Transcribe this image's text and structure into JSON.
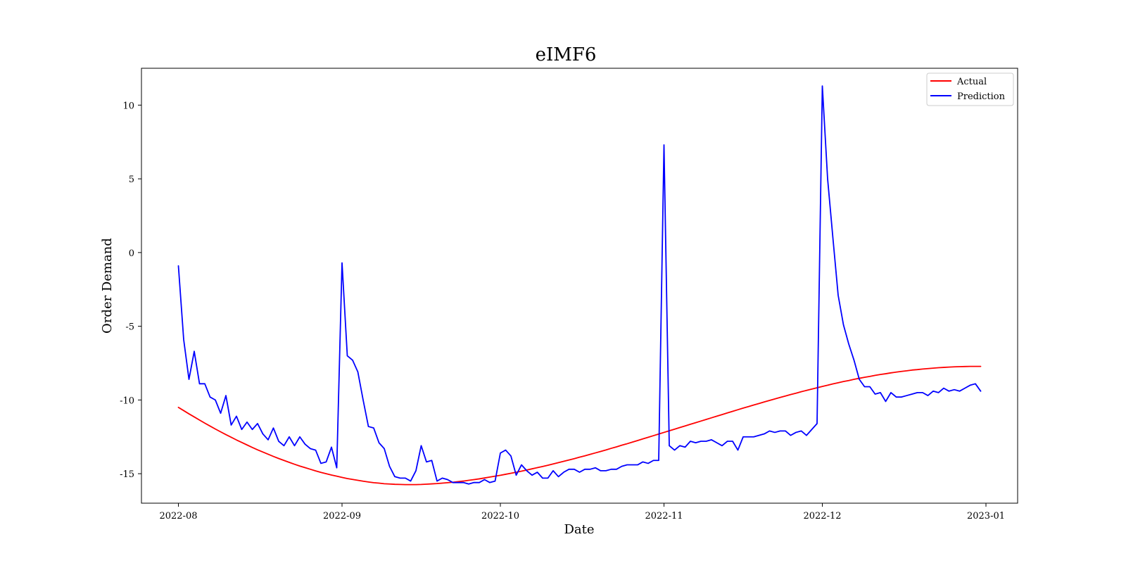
{
  "chart_data": {
    "type": "line",
    "title": "eIMF6",
    "xlabel": "Date",
    "ylabel": "Order Demand",
    "x_start": "2022-08-01",
    "x_end": "2022-12-31",
    "xlim": [
      "2022-07-25",
      "2023-01-07"
    ],
    "ylim": [
      -17,
      12.5
    ],
    "x_ticks": [
      {
        "date": "2022-08-01",
        "label": "2022-08"
      },
      {
        "date": "2022-09-01",
        "label": "2022-09"
      },
      {
        "date": "2022-10-01",
        "label": "2022-10"
      },
      {
        "date": "2022-11-01",
        "label": "2022-11"
      },
      {
        "date": "2022-12-01",
        "label": "2022-12"
      },
      {
        "date": "2023-01-01",
        "label": "2023-01"
      }
    ],
    "y_ticks": [
      {
        "value": 10,
        "label": "10"
      },
      {
        "value": 5,
        "label": "5"
      },
      {
        "value": 0,
        "label": "0"
      },
      {
        "value": -5,
        "label": "-5"
      },
      {
        "value": -10,
        "label": "-10"
      },
      {
        "value": -15,
        "label": "-15"
      }
    ],
    "grid": false,
    "legend": "top-right",
    "series": [
      {
        "name": "Actual",
        "color": "#ff0000",
        "values": [
          -10.5,
          -10.72,
          -10.94,
          -11.15,
          -11.36,
          -11.57,
          -11.77,
          -11.97,
          -12.16,
          -12.35,
          -12.53,
          -12.71,
          -12.88,
          -13.05,
          -13.22,
          -13.38,
          -13.53,
          -13.68,
          -13.83,
          -13.97,
          -14.1,
          -14.23,
          -14.36,
          -14.48,
          -14.59,
          -14.7,
          -14.81,
          -14.91,
          -15.0,
          -15.09,
          -15.17,
          -15.25,
          -15.33,
          -15.39,
          -15.45,
          -15.51,
          -15.56,
          -15.61,
          -15.64,
          -15.68,
          -15.7,
          -15.72,
          -15.73,
          -15.74,
          -15.74,
          -15.74,
          -15.73,
          -15.71,
          -15.69,
          -15.67,
          -15.64,
          -15.61,
          -15.58,
          -15.54,
          -15.5,
          -15.45,
          -15.4,
          -15.35,
          -15.29,
          -15.23,
          -15.17,
          -15.11,
          -15.04,
          -14.97,
          -14.9,
          -14.83,
          -14.75,
          -14.67,
          -14.59,
          -14.51,
          -14.43,
          -14.34,
          -14.25,
          -14.16,
          -14.07,
          -13.98,
          -13.88,
          -13.79,
          -13.69,
          -13.59,
          -13.49,
          -13.39,
          -13.28,
          -13.18,
          -13.07,
          -12.97,
          -12.86,
          -12.75,
          -12.64,
          -12.53,
          -12.42,
          -12.31,
          -12.2,
          -12.09,
          -11.98,
          -11.87,
          -11.76,
          -11.65,
          -11.54,
          -11.43,
          -11.32,
          -11.21,
          -11.1,
          -10.99,
          -10.88,
          -10.77,
          -10.66,
          -10.55,
          -10.45,
          -10.34,
          -10.24,
          -10.13,
          -10.03,
          -9.93,
          -9.83,
          -9.73,
          -9.63,
          -9.54,
          -9.44,
          -9.35,
          -9.26,
          -9.17,
          -9.08,
          -9.0,
          -8.91,
          -8.83,
          -8.75,
          -8.68,
          -8.6,
          -8.53,
          -8.46,
          -8.4,
          -8.33,
          -8.27,
          -8.22,
          -8.16,
          -8.11,
          -8.06,
          -8.02,
          -7.97,
          -7.94,
          -7.9,
          -7.87,
          -7.84,
          -7.81,
          -7.79,
          -7.77,
          -7.75,
          -7.74,
          -7.73,
          -7.72,
          -7.72,
          -7.72
        ]
      },
      {
        "name": "Prediction",
        "color": "#0000ff",
        "values": [
          -0.9,
          -5.9,
          -8.6,
          -6.7,
          -8.9,
          -8.9,
          -9.8,
          -10.0,
          -10.9,
          -9.7,
          -11.7,
          -11.1,
          -12.0,
          -11.5,
          -12.0,
          -11.6,
          -12.3,
          -12.7,
          -11.9,
          -12.8,
          -13.1,
          -12.5,
          -13.1,
          -12.5,
          -13.0,
          -13.3,
          -13.4,
          -14.3,
          -14.2,
          -13.2,
          -14.6,
          -0.7,
          -7.0,
          -7.3,
          -8.1,
          -10.0,
          -11.8,
          -11.9,
          -12.9,
          -13.3,
          -14.5,
          -15.2,
          -15.3,
          -15.3,
          -15.5,
          -14.8,
          -13.1,
          -14.2,
          -14.1,
          -15.5,
          -15.3,
          -15.4,
          -15.6,
          -15.6,
          -15.6,
          -15.7,
          -15.6,
          -15.6,
          -15.4,
          -15.6,
          -15.5,
          -13.6,
          -13.4,
          -13.8,
          -15.1,
          -14.4,
          -14.8,
          -15.1,
          -14.9,
          -15.3,
          -15.3,
          -14.8,
          -15.2,
          -14.9,
          -14.7,
          -14.7,
          -14.9,
          -14.7,
          -14.7,
          -14.6,
          -14.8,
          -14.8,
          -14.7,
          -14.7,
          -14.5,
          -14.4,
          -14.4,
          -14.4,
          -14.2,
          -14.3,
          -14.1,
          -14.1,
          7.3,
          -13.1,
          -13.4,
          -13.1,
          -13.2,
          -12.8,
          -12.9,
          -12.8,
          -12.8,
          -12.7,
          -12.9,
          -13.1,
          -12.8,
          -12.8,
          -13.4,
          -12.5,
          -12.5,
          -12.5,
          -12.4,
          -12.3,
          -12.1,
          -12.2,
          -12.1,
          -12.1,
          -12.4,
          -12.2,
          -12.1,
          -12.4,
          -12.0,
          -11.6,
          11.3,
          5.0,
          1.0,
          -2.9,
          -4.9,
          -6.2,
          -7.3,
          -8.6,
          -9.1,
          -9.1,
          -9.6,
          -9.5,
          -10.1,
          -9.5,
          -9.8,
          -9.8,
          -9.7,
          -9.6,
          -9.5,
          -9.5,
          -9.7,
          -9.4,
          -9.5,
          -9.2,
          -9.4,
          -9.3,
          -9.4,
          -9.2,
          -9.0,
          -8.9,
          -9.4
        ]
      }
    ]
  }
}
